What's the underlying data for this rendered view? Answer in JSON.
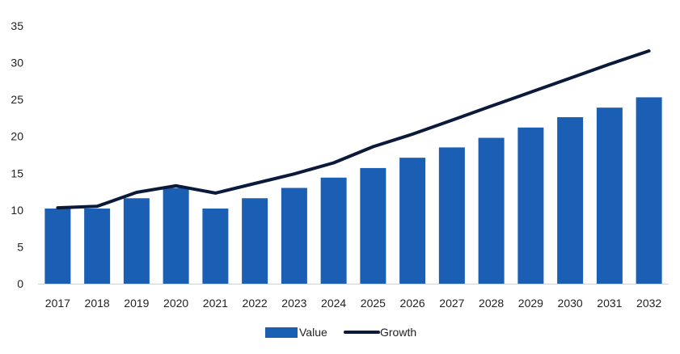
{
  "chart_data": {
    "type": "bar",
    "categories": [
      "2017",
      "2018",
      "2019",
      "2020",
      "2021",
      "2022",
      "2023",
      "2024",
      "2025",
      "2026",
      "2027",
      "2028",
      "2029",
      "2030",
      "2031",
      "2032"
    ],
    "series": [
      {
        "name": "Value",
        "type": "bar",
        "color": "#1a5fb4",
        "values": [
          10.2,
          10.2,
          11.6,
          13.0,
          10.2,
          11.6,
          13.0,
          14.4,
          15.7,
          17.1,
          18.5,
          19.8,
          21.2,
          22.6,
          23.9,
          25.3
        ]
      },
      {
        "name": "Growth",
        "type": "line",
        "color": "#0b1a3a",
        "values": [
          10.3,
          10.5,
          12.4,
          13.3,
          12.3,
          13.6,
          14.9,
          16.4,
          18.6,
          20.3,
          22.2,
          24.1,
          26.0,
          27.9,
          29.8,
          31.6
        ]
      }
    ],
    "ylim": [
      0,
      35
    ],
    "yticks": [
      0,
      5,
      10,
      15,
      20,
      25,
      30,
      35
    ],
    "grid": false,
    "legend_position": "bottom-center"
  }
}
